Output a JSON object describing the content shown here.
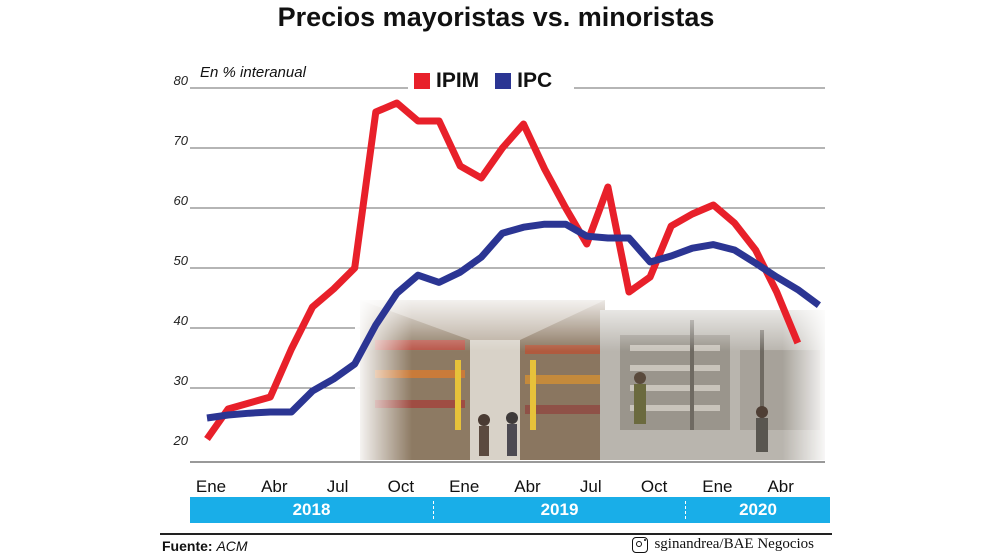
{
  "title": "Precios mayoristas vs. minoristas",
  "unit_label": "En % interanual",
  "legend": [
    {
      "label": "IPIM",
      "color": "#e8202a"
    },
    {
      "label": "IPC",
      "color": "#2b3593"
    }
  ],
  "years": [
    "2018",
    "2019",
    "2020"
  ],
  "footer": {
    "source_label": "Fuente:",
    "source_value": "ACM",
    "credit": "sginandrea/BAE Negocios",
    "credit_icon": "instagram-icon"
  },
  "chart_data": {
    "type": "line",
    "title": "Precios mayoristas vs. minoristas",
    "ylabel": "En % interanual",
    "ylim": [
      20,
      80
    ],
    "yticks": [
      20,
      30,
      40,
      50,
      60,
      70,
      80
    ],
    "grid": true,
    "legend_position": "top-center",
    "x_tick_labels": [
      "Ene",
      "Abr",
      "Jul",
      "Oct",
      "Ene",
      "Abr",
      "Jul",
      "Oct",
      "Ene",
      "Abr"
    ],
    "x_tick_indices": [
      0,
      3,
      6,
      9,
      12,
      15,
      18,
      21,
      24,
      27
    ],
    "x": [
      "2018-01",
      "2018-02",
      "2018-03",
      "2018-04",
      "2018-05",
      "2018-06",
      "2018-07",
      "2018-08",
      "2018-09",
      "2018-10",
      "2018-11",
      "2018-12",
      "2019-01",
      "2019-02",
      "2019-03",
      "2019-04",
      "2019-05",
      "2019-06",
      "2019-07",
      "2019-08",
      "2019-09",
      "2019-10",
      "2019-11",
      "2019-12",
      "2020-01",
      "2020-02",
      "2020-03",
      "2020-04",
      "2020-05",
      "2020-06"
    ],
    "series": [
      {
        "name": "IPIM",
        "color": "#e8202a",
        "values": [
          21.5,
          26.5,
          27.5,
          28.5,
          36.5,
          43.5,
          46.5,
          50.0,
          76.0,
          77.5,
          74.5,
          74.5,
          67.0,
          65.0,
          70.0,
          74.0,
          66.5,
          60.0,
          54.0,
          63.5,
          46.0,
          48.5,
          57.0,
          59.0,
          60.5,
          57.5,
          53.0,
          46.0,
          37.5,
          null
        ]
      },
      {
        "name": "IPC",
        "color": "#2b3593",
        "values": [
          25.0,
          25.5,
          25.8,
          26.0,
          26.0,
          29.5,
          31.5,
          34.0,
          40.5,
          45.8,
          48.8,
          47.6,
          49.3,
          51.8,
          55.8,
          56.8,
          57.3,
          57.3,
          55.3,
          55.0,
          55.0,
          51.0,
          52.0,
          53.3,
          53.9,
          53.0,
          50.8,
          48.5,
          46.4,
          43.8
        ]
      }
    ]
  }
}
